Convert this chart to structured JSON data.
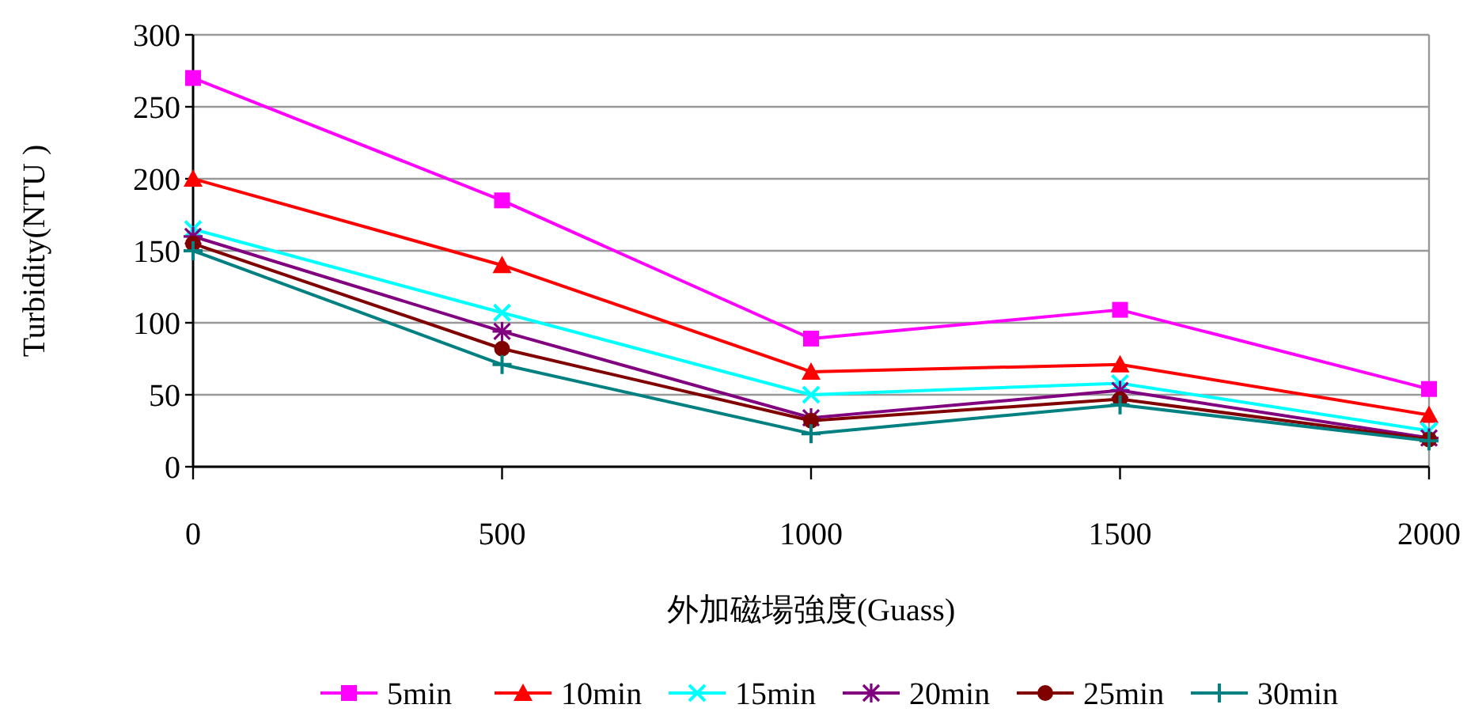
{
  "chart_data": {
    "type": "line",
    "xlabel": "外加磁場強度(Guass)",
    "ylabel": "Turbidity(NTU )",
    "x": [
      0,
      500,
      1000,
      1500,
      2000
    ],
    "xlim": [
      0,
      2000
    ],
    "xticks": [
      0,
      500,
      1000,
      1500,
      2000
    ],
    "ylim": [
      0,
      300
    ],
    "yticks": [
      0,
      50,
      100,
      150,
      200,
      250,
      300
    ],
    "grid": "y",
    "legend": "bottom",
    "line_style": "solid",
    "series": [
      {
        "name": "5min",
        "color": "#ff00ff",
        "marker": "square",
        "values": [
          270,
          185,
          89,
          109,
          54
        ]
      },
      {
        "name": "10min",
        "color": "#ff0000",
        "marker": "triangle",
        "values": [
          200,
          140,
          66,
          71,
          36
        ]
      },
      {
        "name": "15min",
        "color": "#00ffff",
        "marker": "x",
        "values": [
          165,
          107,
          50,
          58,
          25
        ]
      },
      {
        "name": "20min",
        "color": "#800080",
        "marker": "cross",
        "values": [
          160,
          94,
          34,
          53,
          20
        ]
      },
      {
        "name": "25min",
        "color": "#800000",
        "marker": "circle",
        "values": [
          155,
          82,
          32,
          47,
          19
        ]
      },
      {
        "name": "30min",
        "color": "#008080",
        "marker": "plus",
        "values": [
          150,
          71,
          23,
          43,
          18
        ]
      }
    ]
  }
}
